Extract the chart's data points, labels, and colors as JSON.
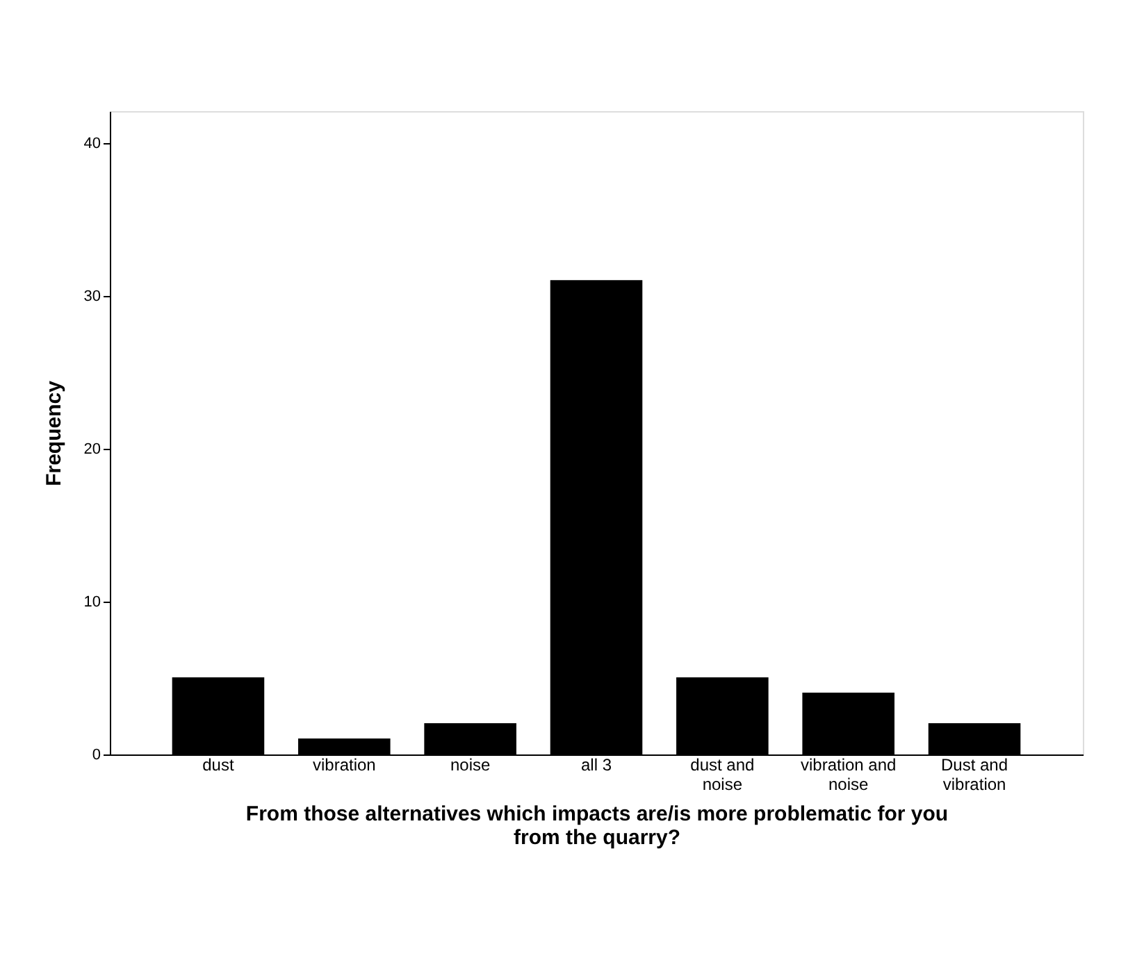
{
  "chart_data": {
    "type": "bar",
    "categories": [
      "dust",
      "vibration",
      "noise",
      "all 3",
      "dust and noise",
      "vibration and noise",
      "Dust and vibration"
    ],
    "values": [
      5,
      1,
      2,
      31,
      5,
      4,
      2
    ],
    "color": "#000000",
    "xlabel": "From those alternatives which impacts are/is more problematic for you from the quarry?",
    "ylabel": "Frequency",
    "ylim": [
      0,
      42.1
    ],
    "yticks": [
      0,
      10,
      20,
      30,
      40
    ],
    "grid": false
  }
}
